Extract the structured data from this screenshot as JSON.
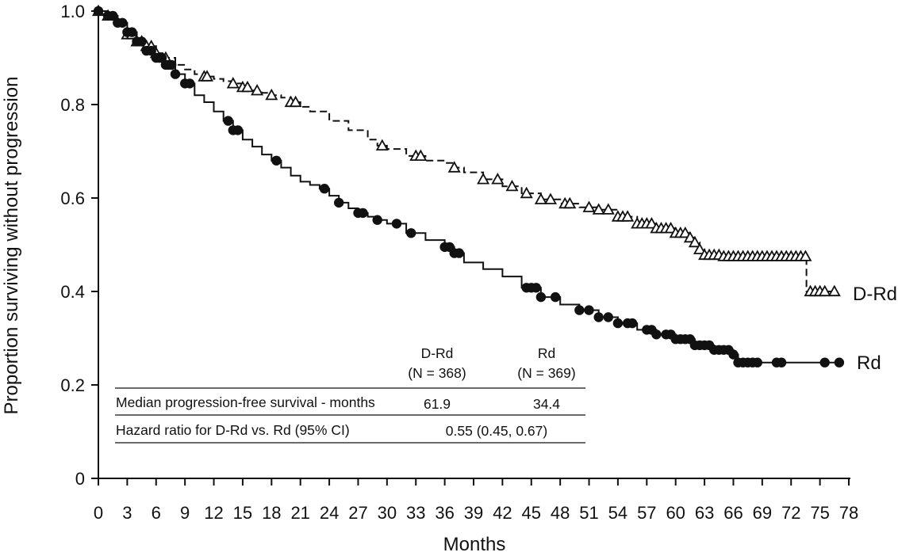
{
  "chart_data": {
    "type": "line",
    "subtype": "kaplan-meier survival curve with censoring markers",
    "title": "",
    "xlabel": "Months",
    "ylabel": "Proportion surviving without progression",
    "xlim": [
      0,
      78
    ],
    "ylim": [
      0,
      1.0
    ],
    "xticks": [
      "0",
      "3",
      "6",
      "9",
      "12",
      "15",
      "18",
      "21",
      "24",
      "27",
      "30",
      "33",
      "36",
      "39",
      "42",
      "45",
      "48",
      "51",
      "54",
      "57",
      "60",
      "63",
      "66",
      "69",
      "72",
      "75",
      "78"
    ],
    "yticks": [
      "0",
      "0.2",
      "0.4",
      "0.6",
      "0.8",
      "1.0"
    ],
    "grid": false,
    "series": [
      {
        "name": "D-Rd",
        "line_style": "dashed",
        "marker": "open-triangle",
        "color": "#111111",
        "curve": [
          [
            0,
            1.0
          ],
          [
            1,
            0.99
          ],
          [
            2,
            0.975
          ],
          [
            3,
            0.95
          ],
          [
            4,
            0.935
          ],
          [
            5,
            0.925
          ],
          [
            6,
            0.91
          ],
          [
            7,
            0.9
          ],
          [
            8,
            0.885
          ],
          [
            9,
            0.875
          ],
          [
            10,
            0.865
          ],
          [
            11,
            0.86
          ],
          [
            12,
            0.855
          ],
          [
            13,
            0.85
          ],
          [
            14,
            0.845
          ],
          [
            15,
            0.837
          ],
          [
            16,
            0.83
          ],
          [
            17,
            0.825
          ],
          [
            18,
            0.82
          ],
          [
            19,
            0.815
          ],
          [
            20,
            0.805
          ],
          [
            21,
            0.795
          ],
          [
            22,
            0.785
          ],
          [
            24,
            0.765
          ],
          [
            26,
            0.745
          ],
          [
            28,
            0.725
          ],
          [
            29,
            0.712
          ],
          [
            30,
            0.705
          ],
          [
            32,
            0.69
          ],
          [
            34,
            0.68
          ],
          [
            36,
            0.675
          ],
          [
            37,
            0.665
          ],
          [
            38,
            0.655
          ],
          [
            40,
            0.64
          ],
          [
            42,
            0.625
          ],
          [
            44,
            0.61
          ],
          [
            46,
            0.597
          ],
          [
            48,
            0.588
          ],
          [
            50,
            0.58
          ],
          [
            52,
            0.575
          ],
          [
            54,
            0.56
          ],
          [
            56,
            0.545
          ],
          [
            58,
            0.535
          ],
          [
            60,
            0.525
          ],
          [
            61.5,
            0.515
          ],
          [
            62,
            0.505
          ],
          [
            62.5,
            0.49
          ],
          [
            63,
            0.478
          ],
          [
            65,
            0.475
          ],
          [
            73.5,
            0.475
          ],
          [
            73.6,
            0.4
          ],
          [
            77,
            0.4
          ]
        ],
        "censored_times": [
          0,
          1,
          3,
          3.5,
          4,
          4.5,
          5,
          5.5,
          6,
          7,
          11,
          11.3,
          14,
          15,
          15.5,
          16.5,
          18,
          20,
          20.5,
          29.5,
          33,
          33.5,
          37,
          40,
          41.5,
          43,
          44.5,
          46,
          47,
          48.5,
          49,
          51,
          52,
          53,
          54,
          54.5,
          55,
          56,
          56.5,
          57,
          57.5,
          58,
          58.5,
          59,
          59.5,
          60,
          60.5,
          61,
          61.5,
          62,
          62.5,
          63,
          63.5,
          64,
          64.5,
          65,
          65.5,
          66,
          66.5,
          67,
          67.5,
          68,
          68.5,
          69,
          69.5,
          70,
          70.5,
          71,
          71.5,
          72,
          72.5,
          73,
          73.5,
          74,
          74.5,
          75,
          75.5,
          76.5
        ]
      },
      {
        "name": "Rd",
        "line_style": "solid",
        "marker": "filled-circle",
        "color": "#111111",
        "curve": [
          [
            0,
            1.0
          ],
          [
            1,
            0.99
          ],
          [
            2,
            0.975
          ],
          [
            3,
            0.955
          ],
          [
            4,
            0.935
          ],
          [
            5,
            0.915
          ],
          [
            6,
            0.9
          ],
          [
            7,
            0.885
          ],
          [
            8,
            0.865
          ],
          [
            9,
            0.845
          ],
          [
            10,
            0.82
          ],
          [
            11,
            0.805
          ],
          [
            12,
            0.785
          ],
          [
            13,
            0.765
          ],
          [
            14,
            0.745
          ],
          [
            15,
            0.725
          ],
          [
            16,
            0.71
          ],
          [
            17,
            0.693
          ],
          [
            18,
            0.68
          ],
          [
            19,
            0.665
          ],
          [
            20,
            0.648
          ],
          [
            21,
            0.635
          ],
          [
            22,
            0.628
          ],
          [
            23,
            0.62
          ],
          [
            24,
            0.605
          ],
          [
            25,
            0.59
          ],
          [
            26,
            0.578
          ],
          [
            27,
            0.568
          ],
          [
            28,
            0.56
          ],
          [
            29,
            0.553
          ],
          [
            30,
            0.545
          ],
          [
            32,
            0.525
          ],
          [
            34,
            0.51
          ],
          [
            36,
            0.495
          ],
          [
            37,
            0.482
          ],
          [
            38,
            0.462
          ],
          [
            40,
            0.448
          ],
          [
            42,
            0.432
          ],
          [
            44,
            0.408
          ],
          [
            46,
            0.388
          ],
          [
            48,
            0.372
          ],
          [
            50,
            0.36
          ],
          [
            52,
            0.345
          ],
          [
            54,
            0.332
          ],
          [
            56,
            0.318
          ],
          [
            58,
            0.308
          ],
          [
            60,
            0.298
          ],
          [
            62,
            0.285
          ],
          [
            64,
            0.275
          ],
          [
            66,
            0.265
          ],
          [
            66.5,
            0.248
          ],
          [
            77,
            0.248
          ]
        ],
        "censored_times": [
          0,
          1,
          1.5,
          2,
          2.5,
          3,
          3.5,
          4,
          4.5,
          5,
          5.5,
          6,
          6.3,
          6.6,
          7,
          7.3,
          7.6,
          8,
          9,
          9.5,
          13.5,
          14,
          14.5,
          18.5,
          23.5,
          25,
          27,
          27.5,
          29,
          31,
          32.5,
          36,
          36.5,
          37,
          37.5,
          44.5,
          45,
          45.5,
          46,
          47.5,
          50,
          51,
          52,
          53,
          54,
          55,
          55.5,
          57,
          57.5,
          58,
          59,
          59.5,
          60,
          60.5,
          61,
          61.5,
          62,
          62.5,
          63,
          63.5,
          64,
          64.5,
          65,
          65.5,
          66,
          66.5,
          67,
          67.5,
          68,
          68.5,
          70.5,
          71,
          75.5,
          77
        ]
      }
    ],
    "table": {
      "col_headers": [
        {
          "line1": "D-Rd",
          "line2": "(N = 368)"
        },
        {
          "line1": "Rd",
          "line2": "(N = 369)"
        }
      ],
      "rows": [
        {
          "label": "Median progression-free survival - months",
          "values": [
            "61.9",
            "34.4"
          ]
        },
        {
          "label": "Hazard ratio for D-Rd vs. Rd (95% CI)",
          "merged_value": "0.55 (0.45, 0.67)"
        }
      ]
    }
  }
}
